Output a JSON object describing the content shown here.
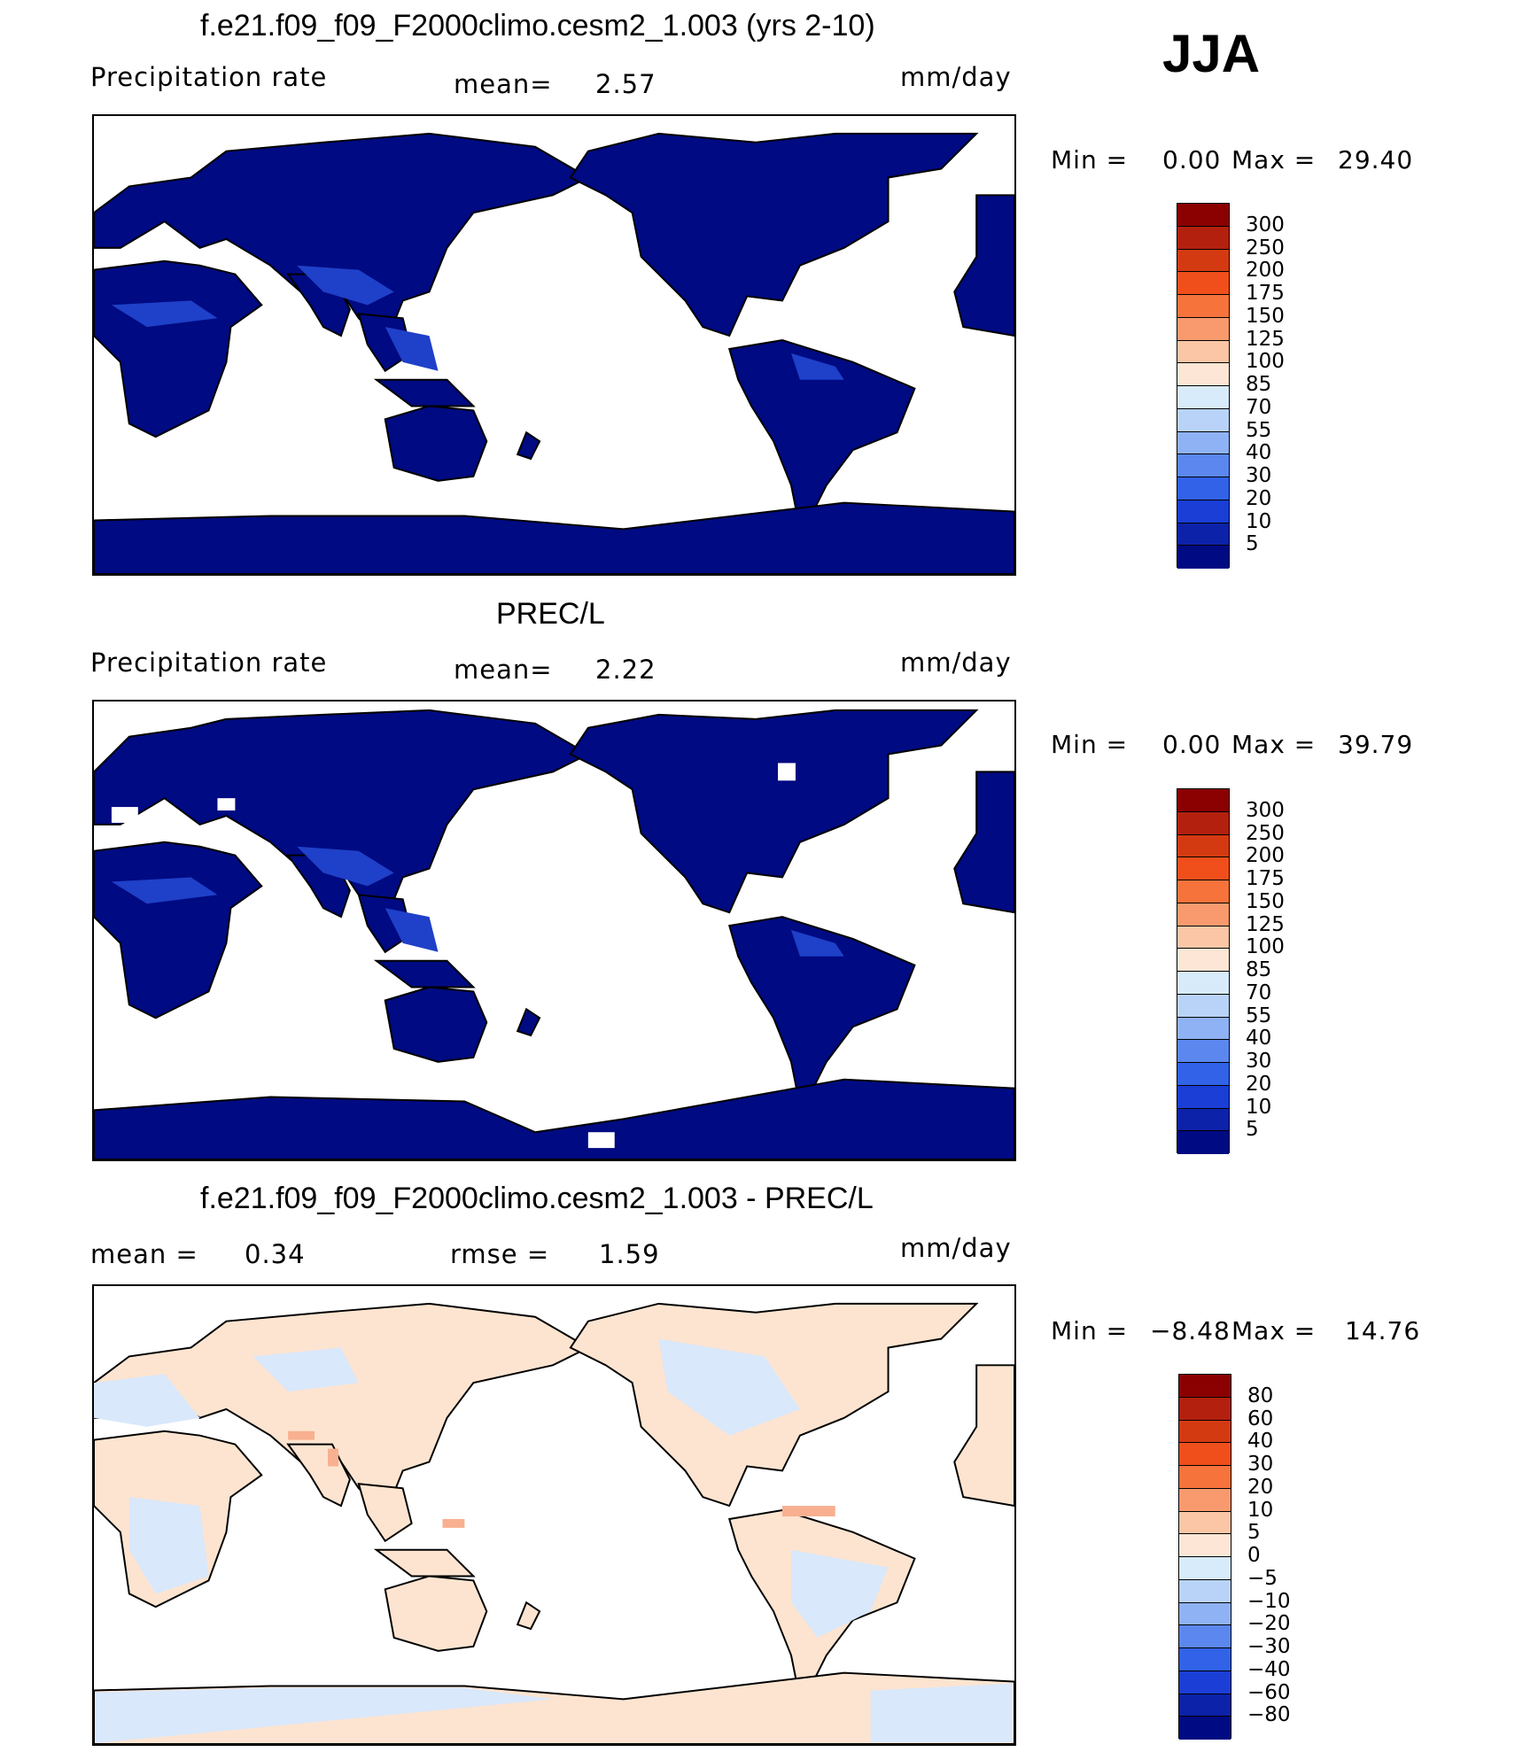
{
  "season_label": "JJA",
  "colors": {
    "land_dark": "#000a82",
    "land_mid": "#0a1aa0",
    "land_light": "#1f40c8",
    "diff_pos": "#fde4d0",
    "diff_neg": "#d9e8fb",
    "diff_strong_pos": "#f8b090",
    "ocean": "#ffffff"
  },
  "panels": [
    {
      "title": "f.e21.f09_f09_F2000climo.cesm2_1.003 (yrs 2-10)",
      "variable_label": "Precipitation  rate",
      "mean_label": "mean=",
      "mean_value": "2.57",
      "units": "mm/day",
      "min_label": "Min  =",
      "min_value": "0.00",
      "max_label": "Max  =",
      "max_value": "29.40",
      "colorbar_levels": [
        "300",
        "250",
        "200",
        "175",
        "150",
        "125",
        "100",
        "85",
        "70",
        "55",
        "40",
        "30",
        "20",
        "10",
        "5"
      ]
    },
    {
      "title": "PREC/L",
      "variable_label": "Precipitation  rate",
      "mean_label": "mean=",
      "mean_value": "2.22",
      "units": "mm/day",
      "min_label": "Min  =",
      "min_value": "0.00",
      "max_label": "Max  =",
      "max_value": "39.79",
      "colorbar_levels": [
        "300",
        "250",
        "200",
        "175",
        "150",
        "125",
        "100",
        "85",
        "70",
        "55",
        "40",
        "30",
        "20",
        "10",
        "5"
      ]
    },
    {
      "title": "f.e21.f09_f09_F2000climo.cesm2_1.003 - PREC/L",
      "mean_label": "mean  =",
      "mean_value": "0.34",
      "rmse_label": "rmse  =",
      "rmse_value": "1.59",
      "units": "mm/day",
      "min_label": "Min  =",
      "min_value": "−8.48",
      "max_label": "Max  =",
      "max_value": "14.76",
      "colorbar_levels": [
        "80",
        "60",
        "40",
        "30",
        "20",
        "10",
        "5",
        "0",
        "−5",
        "−10",
        "−20",
        "−30",
        "−40",
        "−60",
        "−80"
      ]
    }
  ],
  "colorbar_colors": {
    "precip": [
      "#8b0000",
      "#b3200e",
      "#d43a12",
      "#f04f1c",
      "#f7733c",
      "#f99a6e",
      "#fbc6a6",
      "#fde6d6",
      "#d8ebfb",
      "#b9d3f8",
      "#8fb2f5",
      "#5b87ef",
      "#3162e8",
      "#1a3ed6",
      "#0c22a8",
      "#000a82"
    ],
    "diff": [
      "#8b0000",
      "#b3200e",
      "#d43a12",
      "#f04f1c",
      "#f7733c",
      "#f99a6e",
      "#fbc6a6",
      "#fde6d6",
      "#d8ebfb",
      "#b9d3f8",
      "#8fb2f5",
      "#5b87ef",
      "#3162e8",
      "#1a3ed6",
      "#0c22a8",
      "#000a82"
    ]
  }
}
